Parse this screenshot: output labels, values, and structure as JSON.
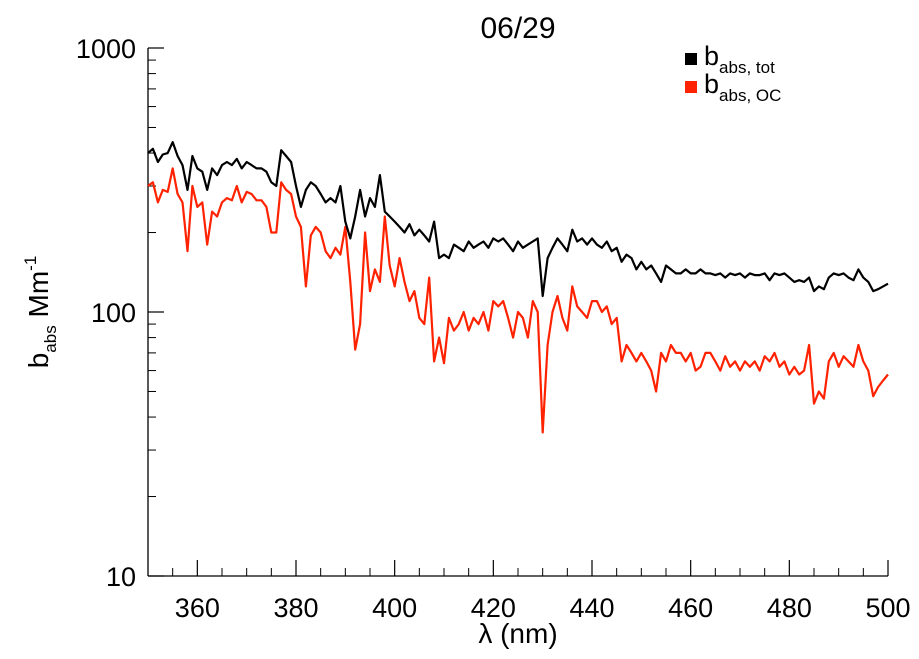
{
  "chart_data": {
    "type": "line",
    "title": "06/29",
    "xlabel": "λ (nm)",
    "ylabel": {
      "base": "b",
      "sub": "abs",
      "unit": " Mm",
      "sup": "-1"
    },
    "xlim": [
      350,
      500
    ],
    "ylim": [
      10,
      1000
    ],
    "yscale": "log",
    "x_ticks": [
      360,
      380,
      400,
      420,
      440,
      460,
      480,
      500
    ],
    "y_ticks": [
      10,
      100,
      1000
    ],
    "grid": false,
    "legend_position": "top-right",
    "series": [
      {
        "name": "b_abs, tot",
        "legend_label": {
          "base": "b",
          "sub": "abs, tot"
        },
        "color": "#000000",
        "x": [
          350,
          351,
          352,
          353,
          354,
          355,
          356,
          357,
          358,
          359,
          360,
          361,
          362,
          363,
          364,
          365,
          366,
          367,
          368,
          369,
          370,
          371,
          372,
          373,
          374,
          375,
          376,
          377,
          378,
          379,
          380,
          381,
          382,
          383,
          384,
          385,
          386,
          387,
          388,
          389,
          390,
          391,
          392,
          393,
          394,
          395,
          396,
          397,
          398,
          399,
          400,
          401,
          402,
          403,
          404,
          405,
          406,
          407,
          408,
          409,
          410,
          411,
          412,
          413,
          414,
          415,
          416,
          417,
          418,
          419,
          420,
          421,
          422,
          423,
          424,
          425,
          426,
          427,
          428,
          429,
          430,
          431,
          432,
          433,
          434,
          435,
          436,
          437,
          438,
          439,
          440,
          441,
          442,
          443,
          444,
          445,
          446,
          447,
          448,
          449,
          450,
          451,
          452,
          453,
          454,
          455,
          456,
          457,
          458,
          459,
          460,
          461,
          462,
          463,
          464,
          465,
          466,
          467,
          468,
          469,
          470,
          471,
          472,
          473,
          474,
          475,
          476,
          477,
          478,
          479,
          480,
          481,
          482,
          483,
          484,
          485,
          486,
          487,
          488,
          489,
          490,
          491,
          492,
          493,
          494,
          495,
          496,
          497,
          498,
          499,
          500
        ],
        "values": [
          400,
          415,
          370,
          395,
          400,
          440,
          390,
          360,
          290,
          390,
          350,
          340,
          290,
          350,
          330,
          360,
          370,
          360,
          380,
          350,
          370,
          360,
          350,
          350,
          340,
          310,
          300,
          410,
          390,
          370,
          300,
          250,
          290,
          310,
          300,
          280,
          260,
          270,
          260,
          300,
          220,
          190,
          230,
          290,
          230,
          270,
          250,
          330,
          240,
          230,
          220,
          210,
          200,
          215,
          195,
          205,
          195,
          185,
          220,
          160,
          165,
          160,
          180,
          175,
          170,
          185,
          175,
          180,
          185,
          175,
          190,
          185,
          190,
          180,
          170,
          185,
          175,
          180,
          185,
          190,
          115,
          160,
          175,
          190,
          180,
          170,
          205,
          185,
          190,
          180,
          190,
          180,
          175,
          185,
          170,
          175,
          155,
          165,
          160,
          145,
          155,
          145,
          150,
          140,
          130,
          150,
          145,
          140,
          140,
          145,
          140,
          140,
          145,
          140,
          140,
          138,
          140,
          135,
          140,
          138,
          140,
          135,
          140,
          138,
          138,
          140,
          132,
          140,
          138,
          140,
          135,
          130,
          132,
          130,
          135,
          120,
          125,
          122,
          135,
          140,
          138,
          140,
          135,
          132,
          145,
          135,
          130,
          120,
          122,
          125,
          128
        ]
      },
      {
        "name": "b_abs, OC",
        "legend_label": {
          "base": "b",
          "sub": "abs, OC"
        },
        "color": "#ff2200",
        "x": [
          350,
          351,
          352,
          353,
          354,
          355,
          356,
          357,
          358,
          359,
          360,
          361,
          362,
          363,
          364,
          365,
          366,
          367,
          368,
          369,
          370,
          371,
          372,
          373,
          374,
          375,
          376,
          377,
          378,
          379,
          380,
          381,
          382,
          383,
          384,
          385,
          386,
          387,
          388,
          389,
          390,
          391,
          392,
          393,
          394,
          395,
          396,
          397,
          398,
          399,
          400,
          401,
          402,
          403,
          404,
          405,
          406,
          407,
          408,
          409,
          410,
          411,
          412,
          413,
          414,
          415,
          416,
          417,
          418,
          419,
          420,
          421,
          422,
          423,
          424,
          425,
          426,
          427,
          428,
          429,
          430,
          431,
          432,
          433,
          434,
          435,
          436,
          437,
          438,
          439,
          440,
          441,
          442,
          443,
          444,
          445,
          446,
          447,
          448,
          449,
          450,
          451,
          452,
          453,
          454,
          455,
          456,
          457,
          458,
          459,
          460,
          461,
          462,
          463,
          464,
          465,
          466,
          467,
          468,
          469,
          470,
          471,
          472,
          473,
          474,
          475,
          476,
          477,
          478,
          479,
          480,
          481,
          482,
          483,
          484,
          485,
          486,
          487,
          488,
          489,
          490,
          491,
          492,
          493,
          494,
          495,
          496,
          497,
          498,
          499,
          500
        ],
        "values": [
          300,
          310,
          260,
          290,
          285,
          350,
          280,
          260,
          170,
          300,
          250,
          260,
          180,
          240,
          230,
          260,
          270,
          265,
          300,
          260,
          285,
          280,
          265,
          265,
          250,
          200,
          200,
          310,
          290,
          280,
          230,
          210,
          125,
          195,
          210,
          200,
          170,
          160,
          175,
          165,
          210,
          130,
          72,
          90,
          200,
          120,
          145,
          130,
          230,
          150,
          125,
          160,
          130,
          110,
          120,
          95,
          90,
          135,
          65,
          80,
          64,
          95,
          85,
          90,
          100,
          85,
          95,
          90,
          100,
          85,
          110,
          105,
          110,
          95,
          80,
          100,
          95,
          80,
          110,
          100,
          35,
          75,
          100,
          115,
          95,
          85,
          125,
          105,
          100,
          95,
          110,
          110,
          100,
          105,
          90,
          95,
          65,
          75,
          70,
          65,
          70,
          65,
          60,
          50,
          70,
          65,
          75,
          70,
          70,
          65,
          70,
          60,
          62,
          70,
          70,
          65,
          60,
          68,
          62,
          65,
          60,
          65,
          62,
          65,
          60,
          68,
          65,
          70,
          62,
          65,
          58,
          62,
          58,
          60,
          75,
          45,
          50,
          47,
          65,
          70,
          62,
          68,
          65,
          62,
          75,
          65,
          60,
          48,
          52,
          55,
          58
        ]
      }
    ]
  }
}
